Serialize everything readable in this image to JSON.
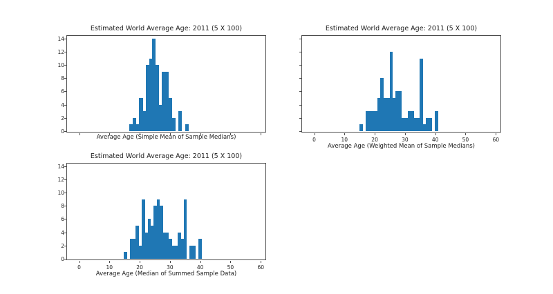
{
  "figure": {
    "background": "#ffffff",
    "text_color": "#1a1a1a",
    "axis_color": "#4a4a4a"
  },
  "chart_data": [
    {
      "type": "bar",
      "subtype": "histogram",
      "title": "Estimated World Average Age: 2011 (5 X 100)",
      "xlabel": "Average Age (Simple Mean of Sample Medians)",
      "ylabel": "",
      "bar_color": "#1f77b4",
      "grid": false,
      "legend": false,
      "xlim": [
        -4,
        62
      ],
      "ylim": [
        0,
        14.7
      ],
      "x_ticks": [
        0,
        10,
        20,
        30,
        40,
        50,
        60
      ],
      "y_ticks": [
        0,
        2,
        4,
        6,
        8,
        10,
        12,
        14
      ],
      "x_tick_labels_visible": false,
      "y_tick_labels_visible": true,
      "bin_start": 16.6,
      "bin_width": 1.08,
      "counts": [
        1,
        2,
        1,
        5,
        3,
        10,
        11,
        14,
        10,
        4,
        9,
        9,
        5,
        2,
        0,
        3,
        0,
        1
      ]
    },
    {
      "type": "bar",
      "subtype": "histogram",
      "title": "Estimated World Average Age: 2011 (5 X 100)",
      "xlabel": "Average Age (Weighted Mean of Sample Medians)",
      "ylabel": "",
      "bar_color": "#1f77b4",
      "grid": false,
      "legend": false,
      "xlim": [
        -4,
        62
      ],
      "ylim": [
        0,
        14.7
      ],
      "x_ticks": [
        0,
        10,
        20,
        30,
        40,
        50,
        60
      ],
      "y_ticks": [
        0,
        2,
        4,
        6,
        8,
        10,
        12,
        14
      ],
      "x_tick_labels_visible": true,
      "y_tick_labels_visible": false,
      "bin_start": 14.9,
      "bin_width": 1.0,
      "counts": [
        1,
        0,
        3,
        3,
        3,
        3,
        5,
        8,
        5,
        5,
        12,
        5,
        6,
        6,
        2,
        2,
        3,
        3,
        2,
        2,
        11,
        1,
        2,
        2,
        0,
        3
      ]
    },
    {
      "type": "bar",
      "subtype": "histogram",
      "title": "Estimated World Average Age: 2011 (5 X 100)",
      "xlabel": "Average Age (Median of Summed Sample Data)",
      "ylabel": "",
      "bar_color": "#1f77b4",
      "grid": false,
      "legend": false,
      "xlim": [
        -4,
        62
      ],
      "ylim": [
        0,
        14.7
      ],
      "x_ticks": [
        0,
        10,
        20,
        30,
        40,
        50,
        60
      ],
      "y_ticks": [
        0,
        2,
        4,
        6,
        8,
        10,
        12,
        14
      ],
      "x_tick_labels_visible": true,
      "y_tick_labels_visible": true,
      "bin_start": 14.7,
      "bin_width": 0.99,
      "counts": [
        1,
        0,
        3,
        3,
        5,
        2,
        9,
        4,
        6,
        5,
        8,
        9,
        8,
        4,
        4,
        3,
        2,
        2,
        4,
        3,
        9,
        0,
        2,
        2,
        0,
        3
      ]
    }
  ]
}
